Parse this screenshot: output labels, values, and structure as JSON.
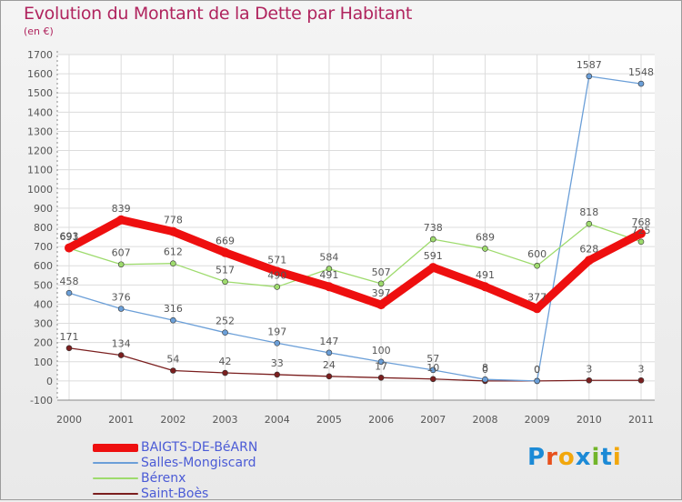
{
  "header": {
    "title": "Evolution du Montant de la Dette par Habitant",
    "subtitle": "(en €)"
  },
  "logo": {
    "text": "Proxiti",
    "colors": [
      "#1c8ad6",
      "#e8501c",
      "#f2a70c",
      "#1c8ad6",
      "#72b52a",
      "#1c8ad6",
      "#f2a70c"
    ]
  },
  "chart_data": {
    "type": "line",
    "title": "Evolution du Montant de la Dette par Habitant",
    "subtitle": "(en €)",
    "x": [
      "2000",
      "2001",
      "2002",
      "2003",
      "2004",
      "2005",
      "2006",
      "2007",
      "2008",
      "2009",
      "2010",
      "2011"
    ],
    "yticks": [
      -100,
      0,
      100,
      200,
      300,
      400,
      500,
      600,
      700,
      800,
      900,
      1000,
      1100,
      1200,
      1300,
      1400,
      1500,
      1600,
      1700
    ],
    "ylim": [
      -100,
      1700
    ],
    "grid": true,
    "legend_position": "bottom-left",
    "series": [
      {
        "name": "BAIGTS-DE-BéARN",
        "color": "#ee0f0f",
        "values": [
          693,
          839,
          778,
          669,
          571,
          491,
          397,
          591,
          491,
          377,
          628,
          768
        ]
      },
      {
        "name": "Salles-Mongiscard",
        "color": "#6b9fd8",
        "values": [
          458,
          376,
          316,
          252,
          197,
          147,
          100,
          57,
          8,
          0,
          1587,
          1548
        ]
      },
      {
        "name": "Bérenx",
        "color": "#9edb6d",
        "values": [
          691,
          607,
          612,
          517,
          490,
          584,
          507,
          738,
          689,
          600,
          818,
          725
        ]
      },
      {
        "name": "Saint-Boès",
        "color": "#7b1f1f",
        "values": [
          171,
          134,
          54,
          42,
          33,
          24,
          17,
          10,
          0,
          0,
          3,
          3
        ]
      }
    ]
  }
}
